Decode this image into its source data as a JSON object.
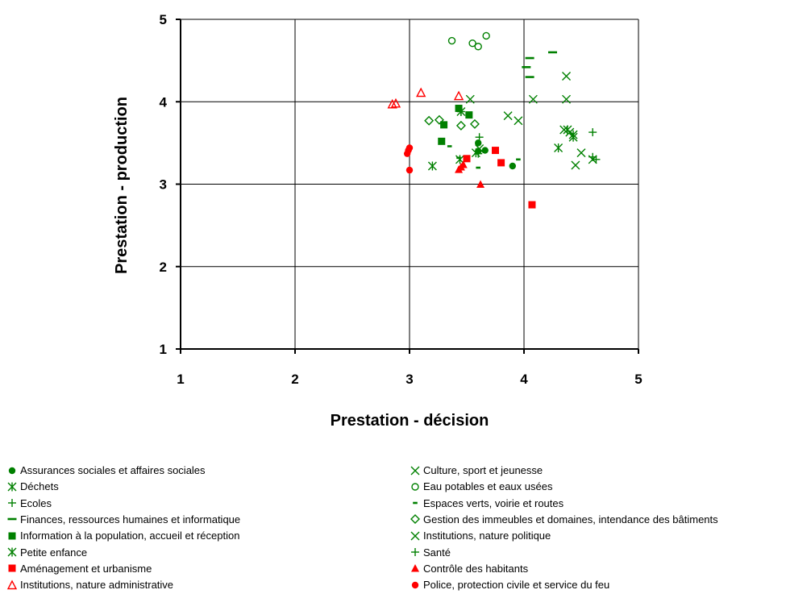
{
  "chart_data": {
    "type": "scatter",
    "title": "",
    "xlabel": "Prestation - décision",
    "ylabel": "Prestation - production",
    "xlim": [
      1,
      5
    ],
    "ylim": [
      1,
      5
    ],
    "xticks": [
      "1",
      "2",
      "3",
      "4",
      "5"
    ],
    "yticks": [
      "1",
      "2",
      "3",
      "4",
      "5"
    ],
    "grid": true,
    "legend_position": "bottom",
    "series": [
      {
        "name": "Assurances sociales et affaires sociales",
        "marker": "circle-filled",
        "color": "#008000",
        "points": [
          [
            3.6,
            3.5
          ],
          [
            3.6,
            3.4
          ],
          [
            3.66,
            3.41
          ],
          [
            3.9,
            3.22
          ]
        ]
      },
      {
        "name": "Déchets",
        "marker": "asterisk",
        "color": "#008000",
        "points": [
          [
            3.2,
            3.22
          ],
          [
            3.44,
            3.3
          ],
          [
            3.58,
            3.38
          ],
          [
            4.3,
            3.44
          ],
          [
            4.38,
            3.66
          ],
          [
            4.43,
            3.6
          ]
        ]
      },
      {
        "name": "Ecoles",
        "marker": "plus",
        "color": "#008000",
        "points": [
          [
            3.45,
            3.88
          ],
          [
            3.61,
            3.57
          ],
          [
            4.6,
            3.63
          ],
          [
            4.63,
            3.3
          ]
        ]
      },
      {
        "name": "Finances, ressources humaines et informatique",
        "marker": "dash-long",
        "color": "#008000",
        "points": [
          [
            4.25,
            4.6
          ],
          [
            4.02,
            4.42
          ],
          [
            4.05,
            4.53
          ],
          [
            4.05,
            4.3
          ]
        ]
      },
      {
        "name": "Information à la population, accueil et réception",
        "marker": "square-filled",
        "color": "#008000",
        "points": [
          [
            3.3,
            3.72
          ],
          [
            3.43,
            3.92
          ],
          [
            3.52,
            3.84
          ],
          [
            3.28,
            3.52
          ]
        ]
      },
      {
        "name": "Petite enfance",
        "marker": "asterisk",
        "color": "#008000",
        "points": [
          [
            3.45,
            3.88
          ],
          [
            4.43,
            3.57
          ]
        ]
      },
      {
        "name": "Aménagement et urbanisme",
        "marker": "square-filled",
        "color": "#ff0000",
        "points": [
          [
            3.5,
            3.31
          ],
          [
            3.75,
            3.41
          ],
          [
            3.8,
            3.26
          ],
          [
            4.07,
            2.75
          ]
        ]
      },
      {
        "name": "Institutions, nature administrative",
        "marker": "triangle-open",
        "color": "#ff0000",
        "points": [
          [
            2.85,
            3.97
          ],
          [
            2.88,
            3.98
          ],
          [
            3.1,
            4.11
          ],
          [
            3.43,
            4.07
          ]
        ]
      },
      {
        "name": "Culture, sport et jeunesse",
        "marker": "x",
        "color": "#008000",
        "points": [
          [
            3.86,
            3.83
          ],
          [
            3.95,
            3.77
          ],
          [
            4.08,
            4.03
          ],
          [
            4.37,
            4.31
          ],
          [
            4.37,
            4.03
          ],
          [
            4.4,
            3.63
          ],
          [
            4.45,
            3.23
          ],
          [
            4.5,
            3.38
          ],
          [
            4.6,
            3.3
          ]
        ]
      },
      {
        "name": "Eau potables et eaux usées",
        "marker": "circle-open",
        "color": "#008000",
        "points": [
          [
            3.37,
            4.74
          ],
          [
            3.55,
            4.71
          ],
          [
            3.6,
            4.67
          ],
          [
            3.67,
            4.8
          ]
        ]
      },
      {
        "name": "Espaces verts, voirie et routes",
        "marker": "dash-short",
        "color": "#008000",
        "points": [
          [
            3.35,
            3.46
          ],
          [
            3.43,
            3.32
          ],
          [
            3.6,
            3.2
          ],
          [
            3.95,
            3.3
          ]
        ]
      },
      {
        "name": "Gestion des immeubles et domaines, intendance des bâtiments",
        "marker": "diamond-open",
        "color": "#008000",
        "points": [
          [
            3.17,
            3.77
          ],
          [
            3.26,
            3.78
          ],
          [
            3.45,
            3.71
          ],
          [
            3.57,
            3.73
          ]
        ]
      },
      {
        "name": "Institutions, nature politique",
        "marker": "x",
        "color": "#008000",
        "points": [
          [
            3.53,
            4.03
          ],
          [
            3.61,
            3.43
          ],
          [
            4.35,
            3.66
          ]
        ]
      },
      {
        "name": "Santé",
        "marker": "plus",
        "color": "#008000",
        "points": [
          [
            3.6,
            3.37
          ],
          [
            4.6,
            3.33
          ]
        ]
      },
      {
        "name": "Contrôle des habitants",
        "marker": "triangle-filled",
        "color": "#ff0000",
        "points": [
          [
            3.43,
            3.18
          ],
          [
            3.45,
            3.21
          ],
          [
            3.47,
            3.24
          ],
          [
            3.62,
            3.0
          ]
        ]
      },
      {
        "name": "Police, protection civile et service du feu",
        "marker": "circle-filled",
        "color": "#ff0000",
        "points": [
          [
            2.98,
            3.37
          ],
          [
            2.99,
            3.41
          ],
          [
            3.0,
            3.44
          ],
          [
            3.0,
            3.17
          ]
        ]
      }
    ]
  }
}
